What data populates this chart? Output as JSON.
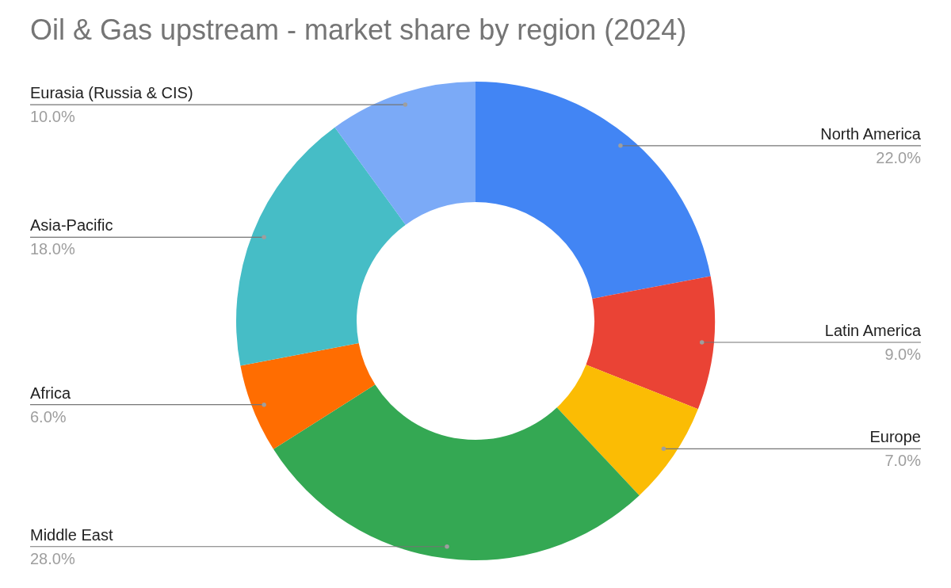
{
  "chart_data": {
    "type": "donut",
    "title": "Oil & Gas upstream - market share by region (2024)",
    "categories": [
      "North America",
      "Latin America",
      "Europe",
      "Middle East",
      "Africa",
      "Asia-Pacific",
      "Eurasia (Russia & CIS)"
    ],
    "values": [
      22,
      9,
      7,
      28,
      6,
      18,
      10
    ],
    "value_labels": [
      "22.0%",
      "9.0%",
      "7.0%",
      "28.0%",
      "6.0%",
      "18.0%",
      "10.0%"
    ],
    "colors": [
      "#4285f4",
      "#ea4335",
      "#fbbc04",
      "#34a853",
      "#ff6d01",
      "#46bdc6",
      "#7baaf7"
    ],
    "legend": false
  }
}
